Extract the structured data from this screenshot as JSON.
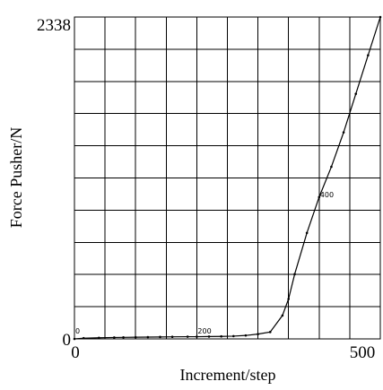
{
  "chart_data": {
    "type": "line",
    "title": "",
    "xlabel": "Increment/step",
    "ylabel": "Force Pusher/N",
    "xlim": [
      0,
      500
    ],
    "ylim": [
      0,
      2338
    ],
    "x_tick_labels": [
      "0",
      "500"
    ],
    "y_tick_labels": [
      "0",
      "2338"
    ],
    "grid": true,
    "grid_columns": 10,
    "grid_rows": 10,
    "series": [
      {
        "x": [
          0,
          15,
          40,
          65,
          80,
          100,
          120,
          140,
          160,
          185,
          200,
          220,
          240,
          260,
          280,
          300,
          320,
          340,
          350,
          360,
          380,
          400,
          420,
          440,
          460,
          480,
          500
        ],
        "y": [
          0,
          5,
          8,
          10,
          11,
          12,
          13,
          14,
          15,
          16,
          16,
          17,
          18,
          20,
          25,
          35,
          50,
          170,
          290,
          470,
          770,
          1030,
          1250,
          1500,
          1780,
          2060,
          2338
        ]
      }
    ],
    "annotations": [
      {
        "text": "0",
        "x": 0,
        "y": 40
      },
      {
        "text": "200",
        "x": 200,
        "y": 40
      },
      {
        "text": "400",
        "x": 400,
        "y": 1030
      }
    ]
  }
}
